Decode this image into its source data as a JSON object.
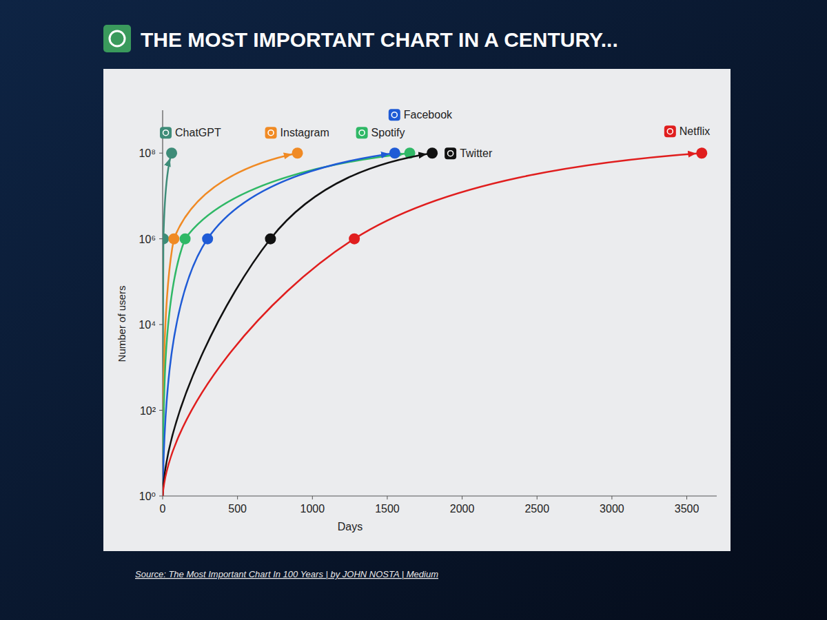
{
  "chart_data": {
    "type": "line",
    "title": "THE MOST IMPORTANT CHART IN A CENTURY...",
    "source": "Source: The Most Important Chart In 100 Years | by JOHN NOSTA | Medium",
    "x_label": "Days",
    "y_label": "Number of users",
    "log": "y",
    "grid": false,
    "marker": "circle",
    "xlim": [
      0,
      3700
    ],
    "ylim": [
      1,
      1000000000
    ],
    "xticks": [
      0,
      500,
      1000,
      1500,
      2000,
      2500,
      3000,
      3500
    ],
    "yticks": [
      {
        "value": 1,
        "label": "10⁰"
      },
      {
        "value": 100,
        "label": "10²"
      },
      {
        "value": 10000,
        "label": "10⁴"
      },
      {
        "value": 1000000,
        "label": "10⁶"
      },
      {
        "value": 100000000,
        "label": "10⁸"
      }
    ],
    "series": [
      {
        "name": "ChatGPT",
        "color": "#3e8c78",
        "x": [
          0,
          5,
          60
        ],
        "values": [
          1,
          1000000,
          100000000
        ]
      },
      {
        "name": "Instagram",
        "color": "#f08a24",
        "x": [
          0,
          75,
          900
        ],
        "values": [
          1,
          1000000,
          100000000
        ]
      },
      {
        "name": "Spotify",
        "color": "#2fb866",
        "x": [
          0,
          150,
          1650
        ],
        "values": [
          1,
          1000000,
          100000000
        ]
      },
      {
        "name": "Facebook",
        "color": "#1f5bd6",
        "x": [
          0,
          300,
          1550
        ],
        "values": [
          1,
          1000000,
          100000000
        ]
      },
      {
        "name": "Twitter",
        "color": "#111111",
        "x": [
          0,
          720,
          1800
        ],
        "values": [
          1,
          1000000,
          100000000
        ]
      },
      {
        "name": "Netflix",
        "color": "#e01e1e",
        "x": [
          0,
          1280,
          3600
        ],
        "values": [
          1,
          1000000,
          100000000
        ]
      }
    ]
  }
}
